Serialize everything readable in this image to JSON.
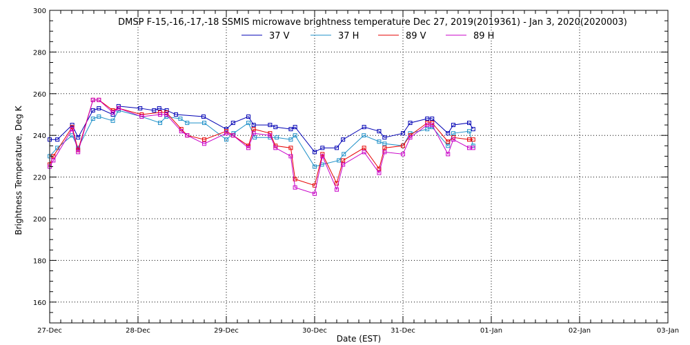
{
  "chart_data": {
    "type": "line",
    "title": "DMSP F-15,-16,-17,-18 SSMIS microwave brightness temperature Dec 27, 2019(2019361) - Jan  3, 2020(2020003)",
    "xlabel": "Date (EST)",
    "ylabel": "Brightness Temperature, Deg K",
    "xlim": [
      "2019-12-27T00:00",
      "2020-01-03T00:00"
    ],
    "ylim": [
      150,
      300
    ],
    "x_ticks": [
      "27-Dec",
      "28-Dec",
      "29-Dec",
      "30-Dec",
      "31-Dec",
      "01-Jan",
      "02-Jan",
      "03-Jan"
    ],
    "y_ticks": [
      160,
      180,
      200,
      220,
      240,
      260,
      280,
      300
    ],
    "grid": true,
    "legend_position": "top",
    "series": [
      {
        "name": "37 V",
        "color": "#0000b4",
        "points": [
          [
            "2019-12-27T00:00",
            238
          ],
          [
            "2019-12-27T02:05",
            238
          ],
          [
            "2019-12-27T06:07",
            245
          ],
          [
            "2019-12-27T07:43",
            239
          ],
          [
            "2019-12-27T11:46",
            252
          ],
          [
            "2019-12-27T13:22",
            253
          ],
          [
            "2019-12-27T17:10",
            250
          ],
          [
            "2019-12-27T18:43",
            254
          ],
          [
            "2019-12-28T00:36",
            253
          ],
          [
            "2019-12-28T04:22",
            252
          ],
          [
            "2019-12-28T05:46",
            253
          ],
          [
            "2019-12-28T07:48",
            252
          ],
          [
            "2019-12-28T10:19",
            250
          ],
          [
            "2019-12-28T17:48",
            249
          ],
          [
            "2019-12-29T00:00",
            243
          ],
          [
            "2019-12-29T01:50",
            246
          ],
          [
            "2019-12-29T06:00",
            249
          ],
          [
            "2019-12-29T07:26",
            245
          ],
          [
            "2019-12-29T11:53",
            245
          ],
          [
            "2019-12-29T13:22",
            244
          ],
          [
            "2019-12-29T17:31",
            243
          ],
          [
            "2019-12-29T18:41",
            244
          ],
          [
            "2019-12-30T00:00",
            232
          ],
          [
            "2019-12-30T02:07",
            234
          ],
          [
            "2019-12-30T06:00",
            234
          ],
          [
            "2019-12-30T07:43",
            238
          ],
          [
            "2019-12-30T13:26",
            244
          ],
          [
            "2019-12-30T17:31",
            242
          ],
          [
            "2019-12-30T19:00",
            239
          ],
          [
            "2019-12-31T00:00",
            241
          ],
          [
            "2019-12-31T01:58",
            246
          ],
          [
            "2019-12-31T06:36",
            248
          ],
          [
            "2019-12-31T07:55",
            248
          ],
          [
            "2019-12-31T12:14",
            241
          ],
          [
            "2019-12-31T13:41",
            245
          ],
          [
            "2019-12-31T18:00",
            246
          ],
          [
            "2019-12-31T19:05",
            243
          ]
        ]
      },
      {
        "name": "37 H",
        "color": "#1e90c8",
        "points": [
          [
            "2019-12-27T00:00",
            230
          ],
          [
            "2019-12-27T02:05",
            234
          ],
          [
            "2019-12-27T06:07",
            240
          ],
          [
            "2019-12-27T07:43",
            234
          ],
          [
            "2019-12-27T11:46",
            248
          ],
          [
            "2019-12-27T13:22",
            249
          ],
          [
            "2019-12-27T17:10",
            247
          ],
          [
            "2019-12-27T18:43",
            252
          ],
          [
            "2019-12-28T01:00",
            249
          ],
          [
            "2019-12-28T06:00",
            246
          ],
          [
            "2019-12-28T07:43",
            249
          ],
          [
            "2019-12-28T11:31",
            248
          ],
          [
            "2019-12-28T13:22",
            246
          ],
          [
            "2019-12-28T18:00",
            246
          ],
          [
            "2019-12-29T00:00",
            238
          ],
          [
            "2019-12-29T01:58",
            241
          ],
          [
            "2019-12-29T06:00",
            246
          ],
          [
            "2019-12-29T07:43",
            239
          ],
          [
            "2019-12-29T11:53",
            239
          ],
          [
            "2019-12-29T13:41",
            239
          ],
          [
            "2019-12-29T17:31",
            238
          ],
          [
            "2019-12-29T18:41",
            240
          ],
          [
            "2019-12-30T00:00",
            225
          ],
          [
            "2019-12-30T01:58",
            226
          ],
          [
            "2019-12-30T06:36",
            228
          ],
          [
            "2019-12-30T07:55",
            231
          ],
          [
            "2019-12-30T13:22",
            240
          ],
          [
            "2019-12-30T17:31",
            237
          ],
          [
            "2019-12-30T19:00",
            236
          ],
          [
            "2019-12-31T00:00",
            235
          ],
          [
            "2019-12-31T01:58",
            241
          ],
          [
            "2019-12-31T06:36",
            243
          ],
          [
            "2019-12-31T07:55",
            244
          ],
          [
            "2019-12-31T12:14",
            235
          ],
          [
            "2019-12-31T13:41",
            241
          ],
          [
            "2019-12-31T18:00",
            242
          ],
          [
            "2019-12-31T19:05",
            235
          ]
        ]
      },
      {
        "name": "89 V",
        "color": "#e60000",
        "points": [
          [
            "2019-12-27T00:00",
            226
          ],
          [
            "2019-12-27T01:00",
            230
          ],
          [
            "2019-12-27T06:07",
            244
          ],
          [
            "2019-12-27T07:43",
            233
          ],
          [
            "2019-12-27T11:46",
            257
          ],
          [
            "2019-12-27T13:22",
            257
          ],
          [
            "2019-12-27T17:10",
            252
          ],
          [
            "2019-12-27T18:43",
            253
          ],
          [
            "2019-12-28T01:00",
            250
          ],
          [
            "2019-12-28T06:00",
            251
          ],
          [
            "2019-12-28T07:43",
            251
          ],
          [
            "2019-12-28T11:46",
            243
          ],
          [
            "2019-12-28T13:22",
            240
          ],
          [
            "2019-12-28T18:00",
            238
          ],
          [
            "2019-12-29T00:00",
            242
          ],
          [
            "2019-12-29T01:50",
            240
          ],
          [
            "2019-12-29T06:00",
            235
          ],
          [
            "2019-12-29T07:26",
            243
          ],
          [
            "2019-12-29T11:53",
            241
          ],
          [
            "2019-12-29T13:22",
            235
          ],
          [
            "2019-12-29T17:31",
            234
          ],
          [
            "2019-12-29T18:41",
            219
          ],
          [
            "2019-12-30T00:00",
            216
          ],
          [
            "2019-12-30T02:07",
            231
          ],
          [
            "2019-12-30T06:00",
            217
          ],
          [
            "2019-12-30T07:43",
            228
          ],
          [
            "2019-12-30T13:26",
            234
          ],
          [
            "2019-12-30T17:31",
            224
          ],
          [
            "2019-12-30T19:00",
            234
          ],
          [
            "2019-12-31T00:00",
            235
          ],
          [
            "2019-12-31T01:58",
            240
          ],
          [
            "2019-12-31T06:36",
            246
          ],
          [
            "2019-12-31T07:55",
            246
          ],
          [
            "2019-12-31T12:14",
            237
          ],
          [
            "2019-12-31T13:41",
            239
          ],
          [
            "2019-12-31T18:00",
            238
          ],
          [
            "2019-12-31T19:05",
            238
          ]
        ]
      },
      {
        "name": "89 H",
        "color": "#c800c8",
        "points": [
          [
            "2019-12-27T00:00",
            225
          ],
          [
            "2019-12-27T01:00",
            228
          ],
          [
            "2019-12-27T06:07",
            243
          ],
          [
            "2019-12-27T07:43",
            232
          ],
          [
            "2019-12-27T11:46",
            257
          ],
          [
            "2019-12-27T13:22",
            257
          ],
          [
            "2019-12-27T17:10",
            251
          ],
          [
            "2019-12-27T18:43",
            253
          ],
          [
            "2019-12-28T01:00",
            249
          ],
          [
            "2019-12-28T06:00",
            250
          ],
          [
            "2019-12-28T07:43",
            250
          ],
          [
            "2019-12-28T11:46",
            242
          ],
          [
            "2019-12-28T13:22",
            240
          ],
          [
            "2019-12-28T18:00",
            236
          ],
          [
            "2019-12-29T00:00",
            241
          ],
          [
            "2019-12-29T01:50",
            240
          ],
          [
            "2019-12-29T06:00",
            234
          ],
          [
            "2019-12-29T07:26",
            241
          ],
          [
            "2019-12-29T11:53",
            240
          ],
          [
            "2019-12-29T13:22",
            234
          ],
          [
            "2019-12-29T17:31",
            230
          ],
          [
            "2019-12-29T18:41",
            215
          ],
          [
            "2019-12-30T00:00",
            212
          ],
          [
            "2019-12-30T02:07",
            230
          ],
          [
            "2019-12-30T06:00",
            214
          ],
          [
            "2019-12-30T07:43",
            226
          ],
          [
            "2019-12-30T13:26",
            232
          ],
          [
            "2019-12-30T17:31",
            222
          ],
          [
            "2019-12-30T19:00",
            232
          ],
          [
            "2019-12-31T00:00",
            231
          ],
          [
            "2019-12-31T01:58",
            239
          ],
          [
            "2019-12-31T06:36",
            245
          ],
          [
            "2019-12-31T07:55",
            245
          ],
          [
            "2019-12-31T12:14",
            231
          ],
          [
            "2019-12-31T13:41",
            238
          ],
          [
            "2019-12-31T18:00",
            234
          ],
          [
            "2019-12-31T19:05",
            234
          ]
        ]
      }
    ]
  }
}
